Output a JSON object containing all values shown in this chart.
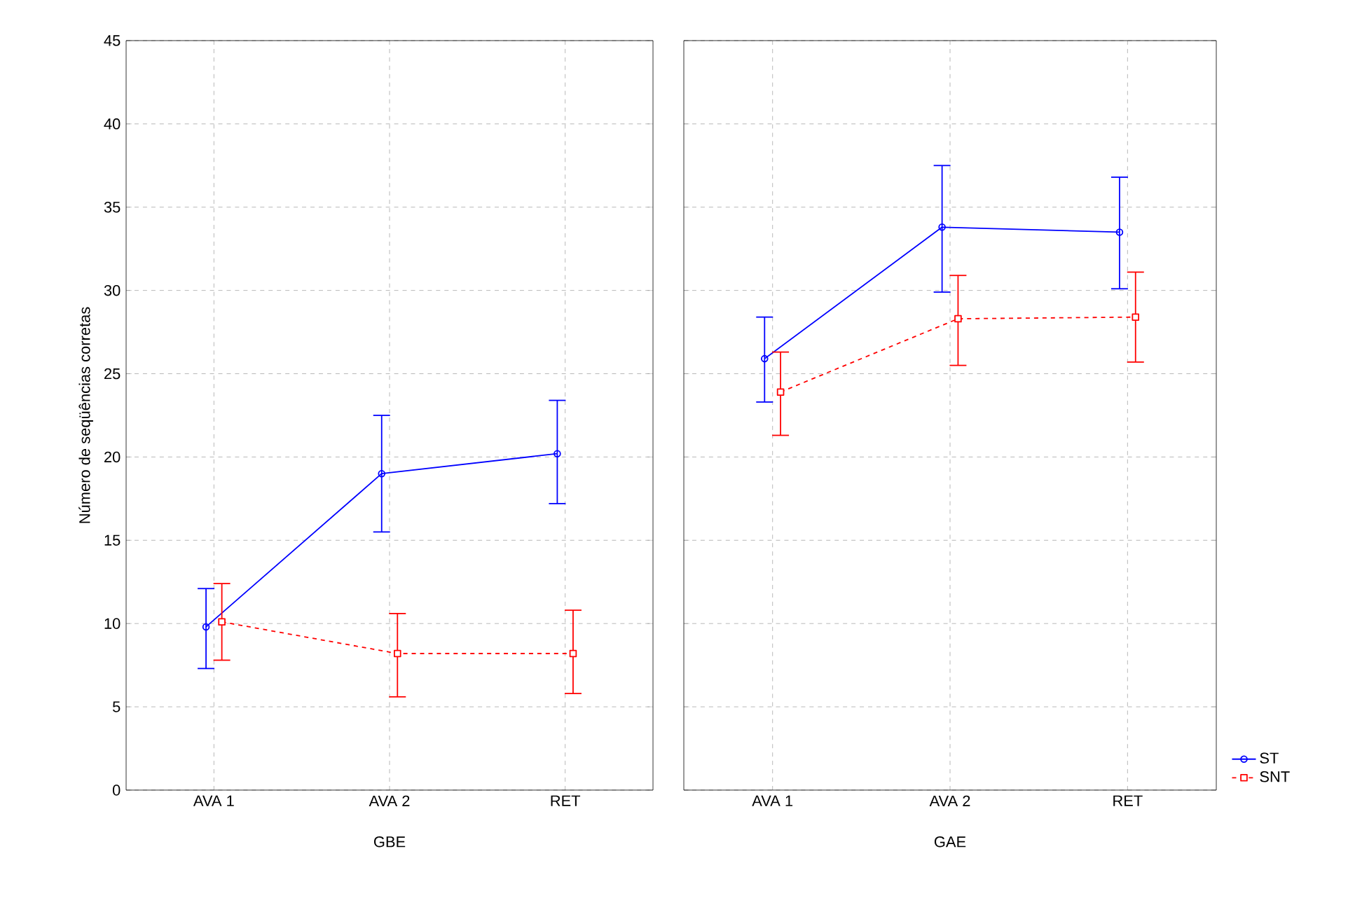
{
  "chart_data": [
    {
      "type": "line",
      "categories": [
        "AVA 1",
        "AVA 2",
        "RET"
      ],
      "xlabel": "GBE",
      "ylabel": "Número de seqüências corretas",
      "ylim": [
        0,
        45
      ],
      "yticks": [
        0,
        5,
        10,
        15,
        20,
        25,
        30,
        35,
        40,
        45
      ],
      "grid": true,
      "series": [
        {
          "color": "#0000ff",
          "marker": "circle",
          "line_style": "solid",
          "values": [
            9.8,
            19.0,
            20.2
          ],
          "errors": [
            [
              7.3,
              12.1
            ],
            [
              15.5,
              22.5
            ],
            [
              17.2,
              23.4
            ]
          ]
        },
        {
          "color": "#ff0000",
          "marker": "square",
          "line_style": "dashed",
          "values": [
            10.1,
            8.2,
            8.2
          ],
          "errors": [
            [
              7.8,
              12.4
            ],
            [
              5.6,
              10.6
            ],
            [
              5.8,
              10.8
            ]
          ]
        }
      ]
    },
    {
      "type": "line",
      "categories": [
        "AVA 1",
        "AVA 2",
        "RET"
      ],
      "xlabel": "GAE",
      "ylim": [
        0,
        45
      ],
      "yticks": [
        0,
        5,
        10,
        15,
        20,
        25,
        30,
        35,
        40,
        45
      ],
      "grid": true,
      "tick_labels": "x",
      "legend": "bottom right",
      "series": [
        {
          "name": "ST",
          "color": "#0000ff",
          "marker": "circle",
          "line_style": "solid",
          "values": [
            25.9,
            33.8,
            33.5
          ],
          "errors": [
            [
              23.3,
              28.4
            ],
            [
              29.9,
              37.5
            ],
            [
              30.1,
              36.8
            ]
          ]
        },
        {
          "name": "SNT",
          "color": "#ff0000",
          "marker": "square",
          "line_style": "dashed",
          "values": [
            23.9,
            28.3,
            28.4
          ],
          "errors": [
            [
              21.3,
              26.3
            ],
            [
              25.5,
              30.9
            ],
            [
              25.7,
              31.1
            ]
          ]
        }
      ]
    }
  ]
}
